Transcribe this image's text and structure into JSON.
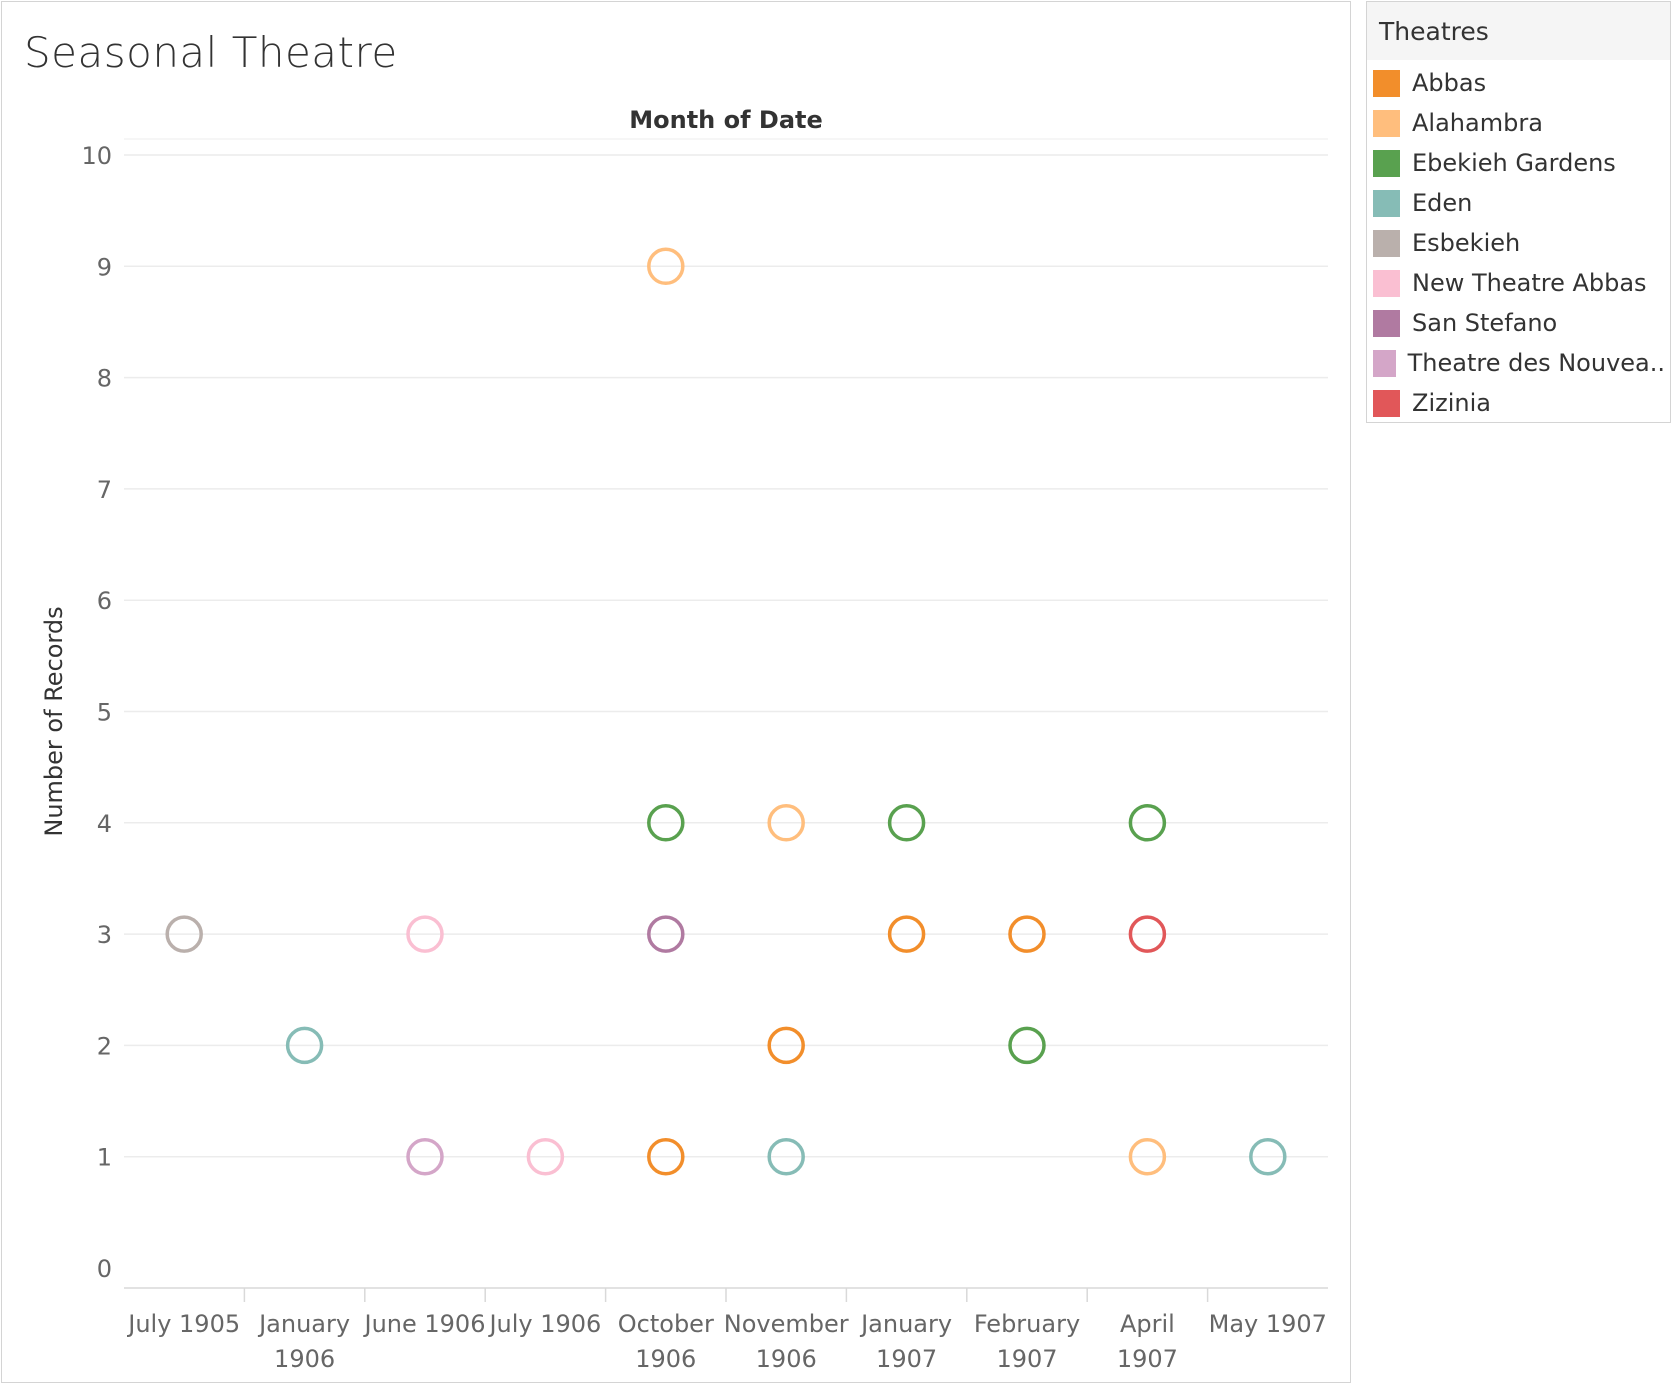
{
  "title": "Seasonal Theatre",
  "legend": {
    "title": "Theatres",
    "items": [
      {
        "label": "Abbas",
        "color": "#f28e2b"
      },
      {
        "label": "Alahambra",
        "color": "#ffbe7d"
      },
      {
        "label": "Ebekieh Gardens",
        "color": "#59a14f"
      },
      {
        "label": "Eden",
        "color": "#86bcb6"
      },
      {
        "label": "Esbekieh",
        "color": "#bab0ac"
      },
      {
        "label": "New Theatre Abbas",
        "color": "#fabfd2"
      },
      {
        "label": "San Stefano",
        "color": "#b07aa1"
      },
      {
        "label": "Theatre des Nouvea..",
        "color": "#d4a6c8"
      },
      {
        "label": "Zizinia",
        "color": "#e15759"
      }
    ]
  },
  "chart_data": {
    "type": "scatter",
    "title": "Month of Date",
    "xlabel": "Month of Date",
    "ylabel": "Number of Records",
    "ylim": [
      0,
      10
    ],
    "yticks": [
      0,
      1,
      2,
      3,
      4,
      5,
      6,
      7,
      8,
      9,
      10
    ],
    "grid": true,
    "legend_position": "right",
    "categories": [
      [
        "July 1905"
      ],
      [
        "January",
        "1906"
      ],
      [
        "June 1906"
      ],
      [
        "July 1906"
      ],
      [
        "October",
        "1906"
      ],
      [
        "November",
        "1906"
      ],
      [
        "January",
        "1907"
      ],
      [
        "February",
        "1907"
      ],
      [
        "April",
        "1907"
      ],
      [
        "May 1907"
      ]
    ],
    "series": [
      {
        "name": "Abbas",
        "color": "#f28e2b",
        "points": [
          [
            4,
            1
          ],
          [
            5,
            2
          ],
          [
            6,
            3
          ],
          [
            7,
            3
          ]
        ]
      },
      {
        "name": "Alahambra",
        "color": "#ffbe7d",
        "points": [
          [
            4,
            9
          ],
          [
            5,
            4
          ],
          [
            8,
            1
          ]
        ]
      },
      {
        "name": "Ebekieh Gardens",
        "color": "#59a14f",
        "points": [
          [
            4,
            4
          ],
          [
            6,
            4
          ],
          [
            7,
            2
          ],
          [
            8,
            4
          ]
        ]
      },
      {
        "name": "Eden",
        "color": "#86bcb6",
        "points": [
          [
            1,
            2
          ],
          [
            5,
            1
          ],
          [
            9,
            1
          ]
        ]
      },
      {
        "name": "Esbekieh",
        "color": "#bab0ac",
        "points": [
          [
            0,
            3
          ]
        ]
      },
      {
        "name": "New Theatre Abbas",
        "color": "#fabfd2",
        "points": [
          [
            2,
            3
          ],
          [
            3,
            1
          ]
        ]
      },
      {
        "name": "San Stefano",
        "color": "#b07aa1",
        "points": [
          [
            4,
            3
          ]
        ]
      },
      {
        "name": "Theatre des Nouvea..",
        "color": "#d4a6c8",
        "points": [
          [
            2,
            1
          ]
        ]
      },
      {
        "name": "Zizinia",
        "color": "#e15759",
        "points": [
          [
            8,
            3
          ]
        ]
      }
    ]
  }
}
